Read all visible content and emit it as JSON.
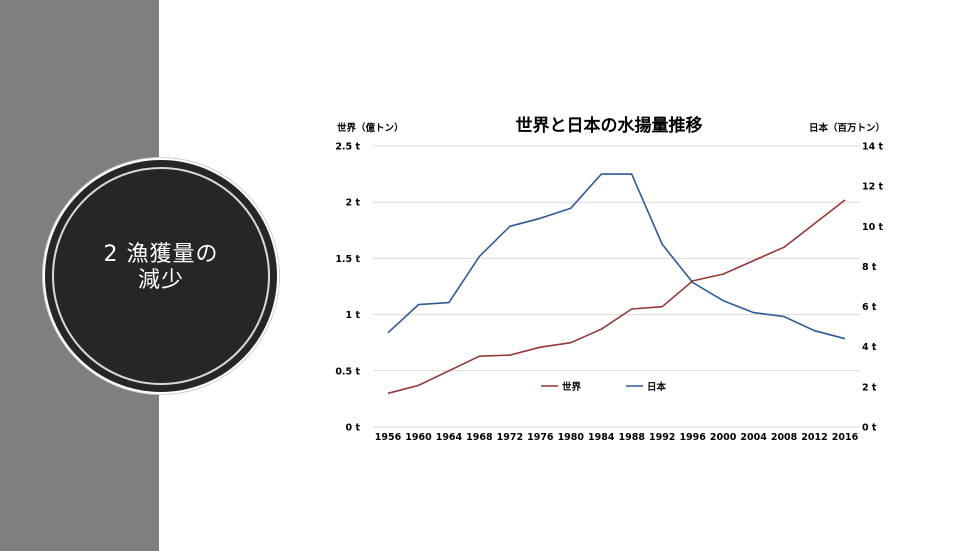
{
  "slide": {
    "section_title_line1": "2 漁獲量の",
    "section_title_line2": "減少",
    "band_color": "#7f7f7f",
    "badge_color": "#262626"
  },
  "chart_data": {
    "type": "line",
    "title": "世界と日本の水揚量推移",
    "y_left_label": "世界（億トン）",
    "y_right_label": "日本（百万トン）",
    "categories": [
      "1956",
      "1960",
      "1964",
      "1968",
      "1972",
      "1976",
      "1980",
      "1984",
      "1988",
      "1992",
      "1996",
      "2000",
      "2004",
      "2008",
      "2012",
      "2016"
    ],
    "y_left_ticks": [
      "0 t",
      "0.5 t",
      "1 t",
      "1.5 t",
      "2 t",
      "2.5 t"
    ],
    "y_right_ticks": [
      "0 t",
      "2 t",
      "4 t",
      "6 t",
      "8 t",
      "10 t",
      "12 t",
      "14 t"
    ],
    "ylim_left": [
      0,
      2.5
    ],
    "ylim_right": [
      0,
      14
    ],
    "grid": true,
    "legend_position": "bottom-center",
    "series": [
      {
        "name": "世界",
        "axis": "left",
        "color": "#953735",
        "values": [
          0.3,
          0.37,
          0.5,
          0.63,
          0.64,
          0.71,
          0.75,
          0.87,
          1.05,
          1.07,
          1.3,
          1.36,
          1.48,
          1.6,
          1.81,
          2.02
        ]
      },
      {
        "name": "日本",
        "axis": "right",
        "color": "#2e5a97",
        "values": [
          4.7,
          6.1,
          6.2,
          8.5,
          10.0,
          10.4,
          10.9,
          12.6,
          12.6,
          9.1,
          7.2,
          6.3,
          5.7,
          5.5,
          4.8,
          4.4
        ]
      }
    ]
  }
}
